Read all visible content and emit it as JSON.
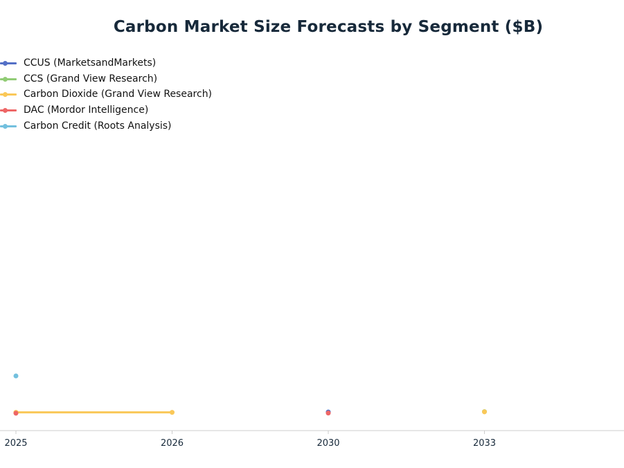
{
  "chart_data": {
    "type": "line",
    "title": "Carbon Market Size Forecasts by Segment ($B)",
    "xlabel": "",
    "ylabel": "",
    "x_categories": [
      "2025",
      "2026",
      "2030",
      "2033"
    ],
    "ylim": [
      0,
      1000
    ],
    "y_axis_visible": false,
    "grid": false,
    "legend_position": "top-left",
    "series": [
      {
        "name": "CCUS (MarketsandMarkets)",
        "color": "#5470c6",
        "points": [
          {
            "x": "2025",
            "y": 3.5
          },
          {
            "x": "2030",
            "y": 7.0
          }
        ]
      },
      {
        "name": "CCS (Grand View Research)",
        "color": "#91cc75",
        "points": [
          {
            "x": "2025",
            "y": 4.0
          },
          {
            "x": "2033",
            "y": 9.0
          }
        ]
      },
      {
        "name": "Carbon Dioxide (Grand View Research)",
        "color": "#fac858",
        "points": [
          {
            "x": "2025",
            "y": 5.0
          },
          {
            "x": "2026",
            "y": 5.0
          },
          {
            "x": "2033",
            "y": 8.0
          }
        ]
      },
      {
        "name": "DAC (Mordor Intelligence)",
        "color": "#ee6666",
        "points": [
          {
            "x": "2025",
            "y": 0.5
          },
          {
            "x": "2030",
            "y": 1.5
          }
        ]
      },
      {
        "name": "Carbon Credit (Roots Analysis)",
        "color": "#73c0de",
        "points": [
          {
            "x": "2025",
            "y": 200.0
          }
        ]
      }
    ]
  }
}
